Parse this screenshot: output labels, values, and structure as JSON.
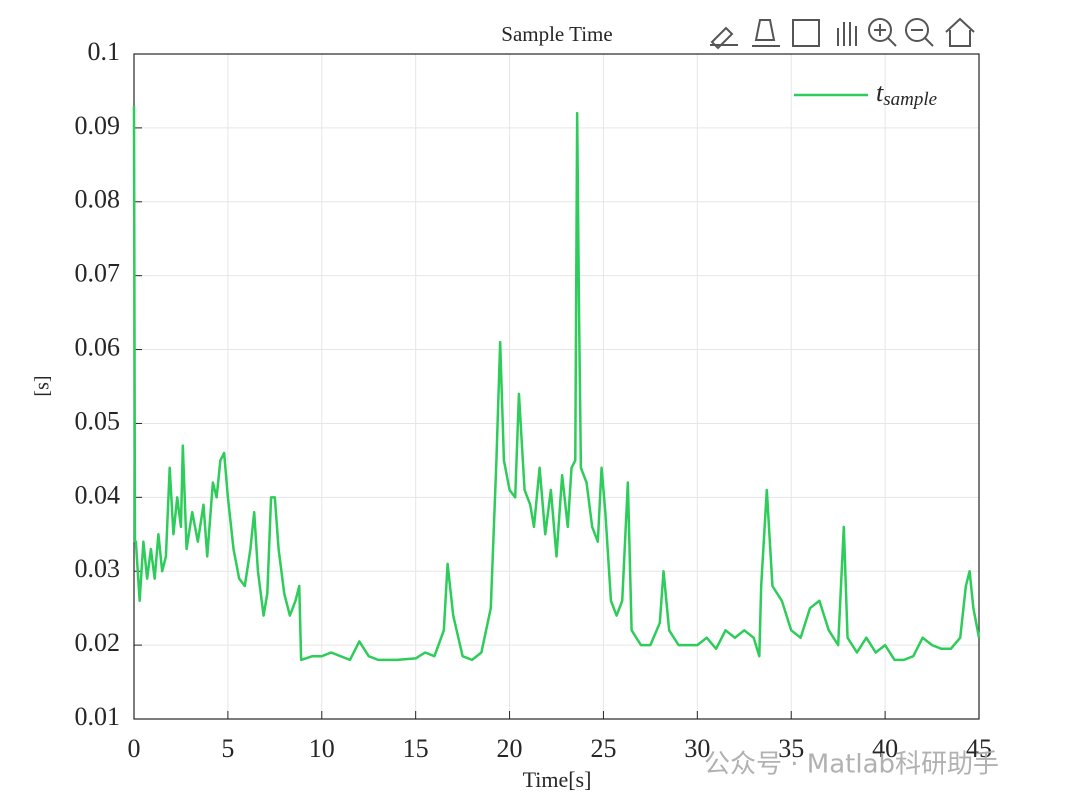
{
  "chart_data": {
    "type": "line",
    "title": "Sample Time",
    "xlabel": "Time[s]",
    "ylabel": "[s]",
    "xlim": [
      0,
      45
    ],
    "ylim": [
      0.01,
      0.1
    ],
    "xticks": [
      0,
      5,
      10,
      15,
      20,
      25,
      30,
      35,
      40,
      45
    ],
    "yticks": [
      0.01,
      0.02,
      0.03,
      0.04,
      0.05,
      0.06,
      0.07,
      0.08,
      0.09,
      0.1
    ],
    "grid": true,
    "legend": "upper right",
    "watermark": "公众号 · Matlab科研助手",
    "x": [
      0,
      0.05,
      0.1,
      0.3,
      0.5,
      0.7,
      0.9,
      1.1,
      1.3,
      1.5,
      1.7,
      1.9,
      2.1,
      2.3,
      2.5,
      2.6,
      2.8,
      3.1,
      3.4,
      3.7,
      3.9,
      4.2,
      4.4,
      4.6,
      4.8,
      5.0,
      5.3,
      5.6,
      5.9,
      6.2,
      6.4,
      6.6,
      6.9,
      7.1,
      7.3,
      7.5,
      7.7,
      8.0,
      8.3,
      8.6,
      8.8,
      8.9,
      9.5,
      10,
      10.5,
      11,
      11.5,
      12,
      12.5,
      13,
      14,
      15,
      15.5,
      16,
      16.5,
      16.7,
      17,
      17.5,
      18,
      18.5,
      19,
      19.3,
      19.5,
      19.7,
      20,
      20.3,
      20.5,
      20.8,
      21.1,
      21.3,
      21.6,
      21.9,
      22.2,
      22.5,
      22.8,
      23.1,
      23.3,
      23.5,
      23.6,
      23.7,
      23.8,
      24.1,
      24.4,
      24.7,
      24.9,
      25.1,
      25.4,
      25.7,
      26.0,
      26.3,
      26.5,
      27,
      27.5,
      28,
      28.2,
      28.5,
      29,
      30,
      30.5,
      31,
      31.5,
      32,
      32.5,
      33,
      33.3,
      33.4,
      33.7,
      34,
      34.5,
      35,
      35.5,
      36,
      36.5,
      37,
      37.5,
      37.8,
      38,
      38.5,
      39,
      39.5,
      40,
      40.5,
      41,
      41.5,
      42,
      42.5,
      43,
      43.5,
      44,
      44.3,
      44.5,
      44.7,
      45
    ],
    "series": [
      {
        "name": "t_sample",
        "color": "#2ecc5a",
        "values": [
          0.093,
          0.034,
          0.034,
          0.026,
          0.034,
          0.029,
          0.033,
          0.029,
          0.035,
          0.03,
          0.032,
          0.044,
          0.035,
          0.04,
          0.036,
          0.047,
          0.033,
          0.038,
          0.034,
          0.039,
          0.032,
          0.042,
          0.04,
          0.045,
          0.046,
          0.04,
          0.033,
          0.029,
          0.028,
          0.033,
          0.038,
          0.03,
          0.024,
          0.027,
          0.04,
          0.04,
          0.033,
          0.027,
          0.024,
          0.026,
          0.028,
          0.018,
          0.0185,
          0.0185,
          0.019,
          0.0185,
          0.018,
          0.0205,
          0.0185,
          0.018,
          0.018,
          0.0182,
          0.019,
          0.0185,
          0.022,
          0.031,
          0.024,
          0.0185,
          0.018,
          0.019,
          0.025,
          0.045,
          0.061,
          0.045,
          0.041,
          0.04,
          0.054,
          0.041,
          0.039,
          0.036,
          0.044,
          0.035,
          0.041,
          0.032,
          0.043,
          0.036,
          0.044,
          0.045,
          0.092,
          0.065,
          0.044,
          0.042,
          0.036,
          0.034,
          0.044,
          0.038,
          0.026,
          0.024,
          0.026,
          0.042,
          0.022,
          0.02,
          0.02,
          0.023,
          0.03,
          0.022,
          0.02,
          0.02,
          0.021,
          0.0195,
          0.022,
          0.021,
          0.022,
          0.021,
          0.0185,
          0.028,
          0.041,
          0.028,
          0.026,
          0.022,
          0.021,
          0.025,
          0.026,
          0.022,
          0.02,
          0.036,
          0.021,
          0.019,
          0.021,
          0.019,
          0.02,
          0.018,
          0.018,
          0.0185,
          0.021,
          0.02,
          0.0195,
          0.0195,
          0.021,
          0.028,
          0.03,
          0.025,
          0.021
        ]
      }
    ]
  }
}
